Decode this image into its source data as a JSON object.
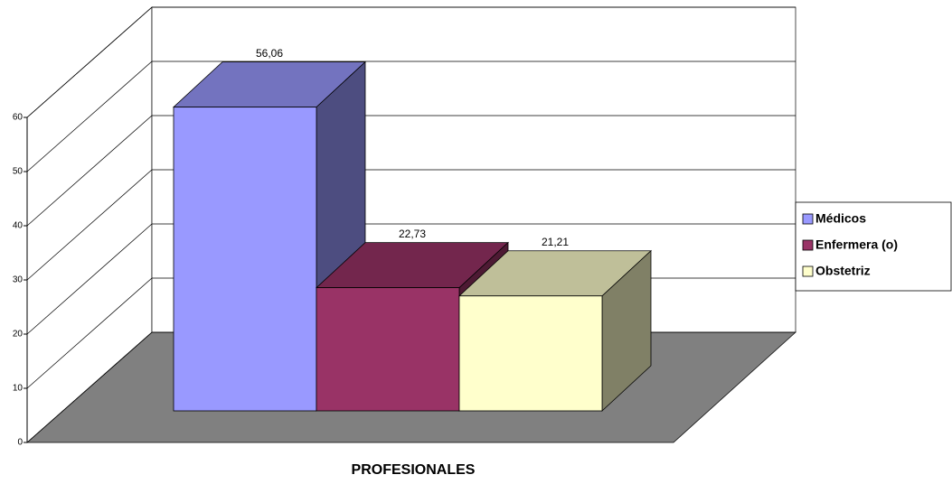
{
  "chart_data": {
    "type": "bar",
    "x_label": "PROFESIONALES",
    "series": [
      {
        "name": "Médicos",
        "color": "#9999ff",
        "values": [
          56.06
        ],
        "value_labels": [
          "56,06"
        ]
      },
      {
        "name": "Enfermera (o)",
        "color": "#993366",
        "values": [
          22.73
        ],
        "value_labels": [
          "22,73"
        ]
      },
      {
        "name": "Obstetriz",
        "color": "#ffffcc",
        "values": [
          21.21
        ],
        "value_labels": [
          "21,21"
        ]
      }
    ],
    "ylim": [
      0,
      60
    ],
    "yticks": [
      0,
      10,
      20,
      30,
      40,
      50,
      60
    ],
    "grid": true,
    "legend": "right"
  }
}
